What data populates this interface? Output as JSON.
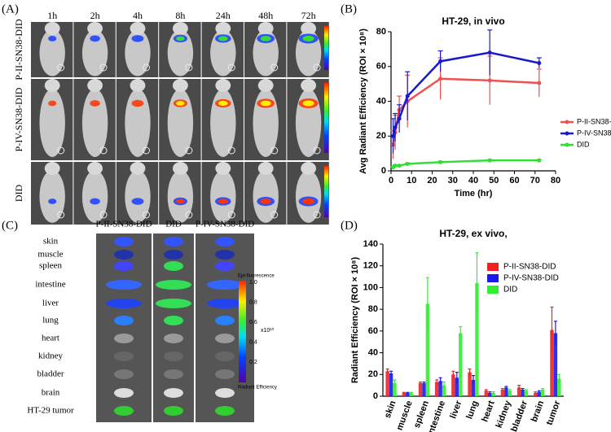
{
  "panel_labels": [
    "(A)",
    "(B)",
    "(C)",
    "(D)"
  ],
  "panel_a": {
    "time_points": [
      "1h",
      "2h",
      "4h",
      "8h",
      "24h",
      "48h",
      "72h"
    ],
    "rows": [
      "P-II-SN38-DID",
      "P-IV-SN38-DID",
      "DID"
    ]
  },
  "panel_c": {
    "columns": [
      "P-II-SN38-DID",
      "DID",
      "P-IV-SN38-DID"
    ],
    "organs": [
      "skin",
      "muscle",
      "spleen",
      "intestine",
      "liver",
      "lung",
      "heart",
      "kidney",
      "bladder",
      "brain",
      "HT-29 tumor"
    ],
    "colorbar": {
      "title": "Epi-fluorescence",
      "ticks": [
        "1.0",
        "0.8",
        "0.6",
        "0.4",
        "0.2"
      ],
      "unit": "x10¹⁰",
      "label": "Radiant Efficiency"
    }
  },
  "chart_data": [
    {
      "type": "line",
      "title": "HT-29, in vivo",
      "x_label": "Time (hr)",
      "y_label": "Avg Radiant Efficiency (ROI × 10⁸)",
      "x": [
        1,
        2,
        4,
        8,
        24,
        48,
        72
      ],
      "xlim": [
        0,
        80
      ],
      "xticks": [
        0,
        10,
        20,
        30,
        40,
        50,
        60,
        70,
        80
      ],
      "ylim": [
        0,
        80
      ],
      "yticks": [
        0,
        20,
        40,
        60,
        80
      ],
      "legend": "right",
      "series": [
        {
          "name": "P-II-SN38-DID",
          "color": "#f05050",
          "values": [
            15,
            22,
            35,
            40,
            53,
            52,
            50.5
          ],
          "errors": [
            8,
            10,
            8,
            15,
            12,
            14,
            8
          ]
        },
        {
          "name": "P-IV-SN38-DID",
          "color": "#1a1acc",
          "values": [
            20,
            25,
            30,
            43,
            63,
            68,
            62
          ],
          "errors": [
            10,
            8,
            8,
            14,
            6,
            13,
            3
          ]
        },
        {
          "name": "DID",
          "color": "#33dd33",
          "values": [
            2,
            3,
            3,
            4,
            5,
            6,
            6
          ],
          "errors": [
            0.5,
            0.5,
            0.5,
            0.5,
            0.5,
            0.5,
            0.5
          ]
        }
      ]
    },
    {
      "type": "bar",
      "title": "HT-29, ex vivo,",
      "y_label": "Radiant Efficiency (ROI × 10⁸)",
      "categories": [
        "skin",
        "muscle",
        "spleen",
        "intestine",
        "liver",
        "lung",
        "heart",
        "kidney",
        "bladder",
        "brain",
        "tumor"
      ],
      "ylim": [
        0,
        140
      ],
      "yticks": [
        0,
        20,
        40,
        60,
        80,
        100,
        120,
        140
      ],
      "legend": "upper right",
      "series": [
        {
          "name": "P-II-SN38-DID",
          "color": "#ee2222",
          "values": [
            23,
            3,
            12,
            13,
            20,
            22,
            5,
            6,
            8,
            3,
            61
          ],
          "errors": [
            2,
            0.5,
            1,
            2,
            3,
            3,
            1,
            1,
            2,
            1,
            21
          ]
        },
        {
          "name": "P-IV-SN38-DID",
          "color": "#1a1aee",
          "values": [
            21,
            3,
            12,
            14,
            17,
            15,
            3,
            8,
            6,
            4,
            58
          ],
          "errors": [
            2,
            0.5,
            1,
            3,
            5,
            4,
            1,
            1,
            1,
            1,
            11
          ]
        },
        {
          "name": "DID",
          "color": "#33ee33",
          "values": [
            12,
            3,
            85,
            10,
            58,
            104,
            3,
            5,
            5,
            6,
            16
          ],
          "errors": [
            3,
            0.5,
            24,
            3,
            6,
            28,
            1,
            1,
            1,
            1,
            4
          ]
        }
      ]
    }
  ]
}
